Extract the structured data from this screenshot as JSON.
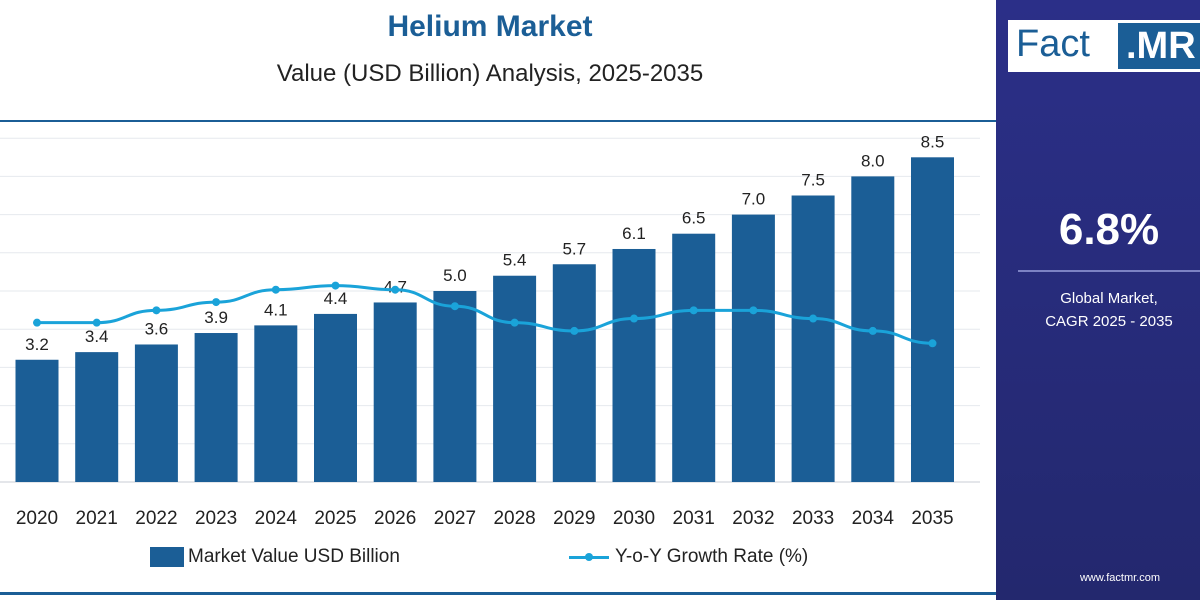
{
  "header": {
    "title": "Helium Market",
    "subtitle": "Value (USD Billion) Analysis, 2025-2035"
  },
  "sidebar": {
    "logo_part1": "Fact",
    "logo_part2": ".MR",
    "cagr_value": "6.8%",
    "cagr_label_line1": "Global Market,",
    "cagr_label_line2": "CAGR 2025 - 2035",
    "website": "www.factmr.com"
  },
  "colors": {
    "bar": "#1b5e96",
    "line": "#1aa3d9",
    "sidebar_bg": "#2b2f88"
  },
  "legend": {
    "bar_label": "Market Value USD Billion",
    "line_label": "Y-o-Y Growth Rate (%)"
  },
  "chart_data": {
    "type": "bar",
    "categories": [
      "2020",
      "2021",
      "2022",
      "2023",
      "2024",
      "2025",
      "2026",
      "2027",
      "2028",
      "2029",
      "2030",
      "2031",
      "2032",
      "2033",
      "2034",
      "2035"
    ],
    "series": [
      {
        "name": "Market Value USD Billion",
        "type": "bar",
        "values": [
          3.2,
          3.4,
          3.6,
          3.9,
          4.1,
          4.4,
          4.7,
          5.0,
          5.4,
          5.7,
          6.1,
          6.5,
          7.0,
          7.5,
          8.0,
          8.5
        ],
        "labels": [
          "3.2",
          "3.4",
          "3.6",
          "3.9",
          "4.1",
          "4.4",
          "4.7",
          "5.0",
          "5.4",
          "5.7",
          "6.1",
          "6.5",
          "7.0",
          "7.5",
          "8.0",
          "8.5"
        ]
      },
      {
        "name": "Y-o-Y Growth Rate (%)",
        "type": "line",
        "values": [
          6.6,
          6.6,
          6.9,
          7.1,
          7.4,
          7.5,
          7.4,
          7.0,
          6.6,
          6.4,
          6.7,
          6.9,
          6.9,
          6.7,
          6.4,
          6.1
        ]
      }
    ],
    "ylim": [
      0,
      9
    ],
    "grid": true,
    "legend_position": "bottom"
  }
}
